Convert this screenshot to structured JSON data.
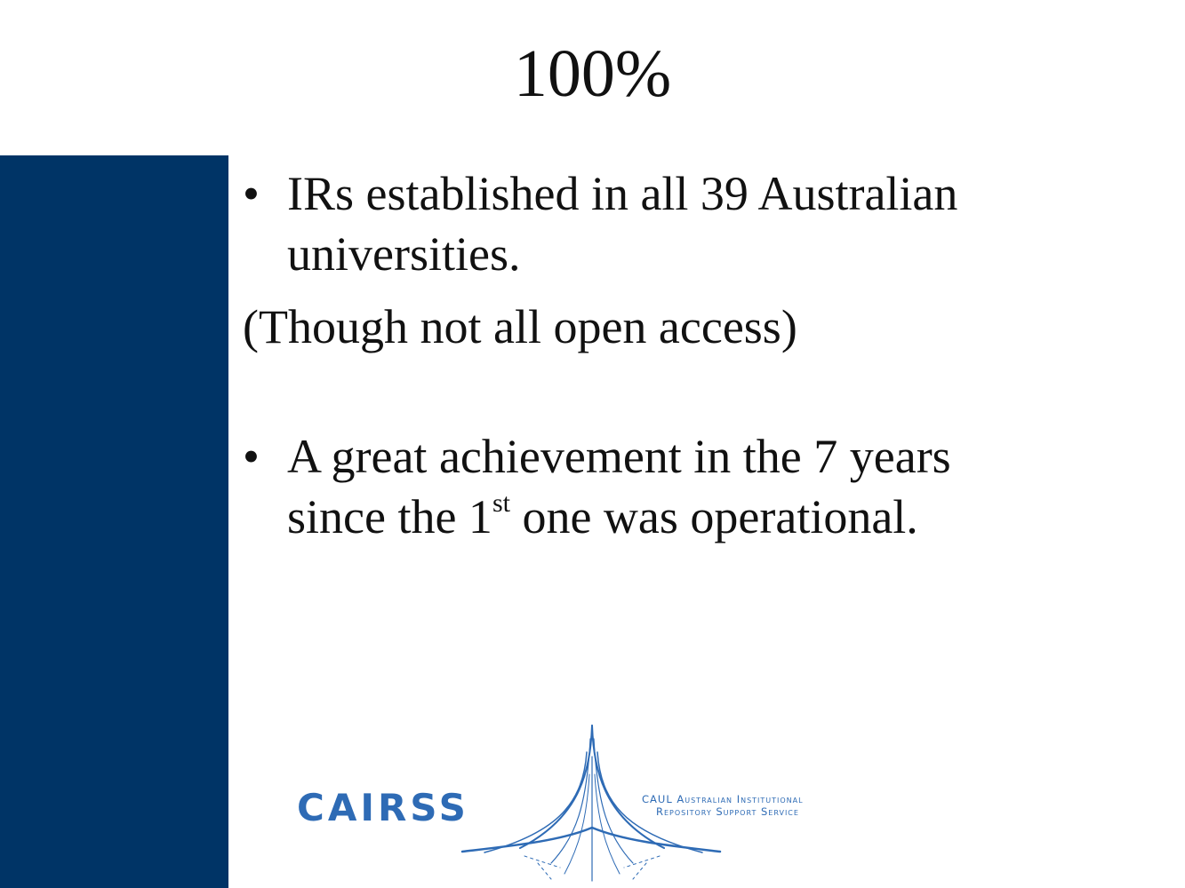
{
  "slide": {
    "title": "100%",
    "accent_color": "#003466",
    "bullets": [
      {
        "marker": "•",
        "line1": "IRs established in all 39 Australian",
        "line2": "universities."
      },
      {
        "marker": "•",
        "line1": "A great achievement in the 7 years",
        "line2_before": "since the 1",
        "line2_sup": "st",
        "line2_after": " one was operational."
      }
    ],
    "note": "(Though not all open access)"
  },
  "logo": {
    "wordmark": "CAIRSS",
    "subtitle_line1": "CAUL Australian Institutional",
    "subtitle_line2": "Repository Support Service",
    "color": "#2e6bb5"
  }
}
